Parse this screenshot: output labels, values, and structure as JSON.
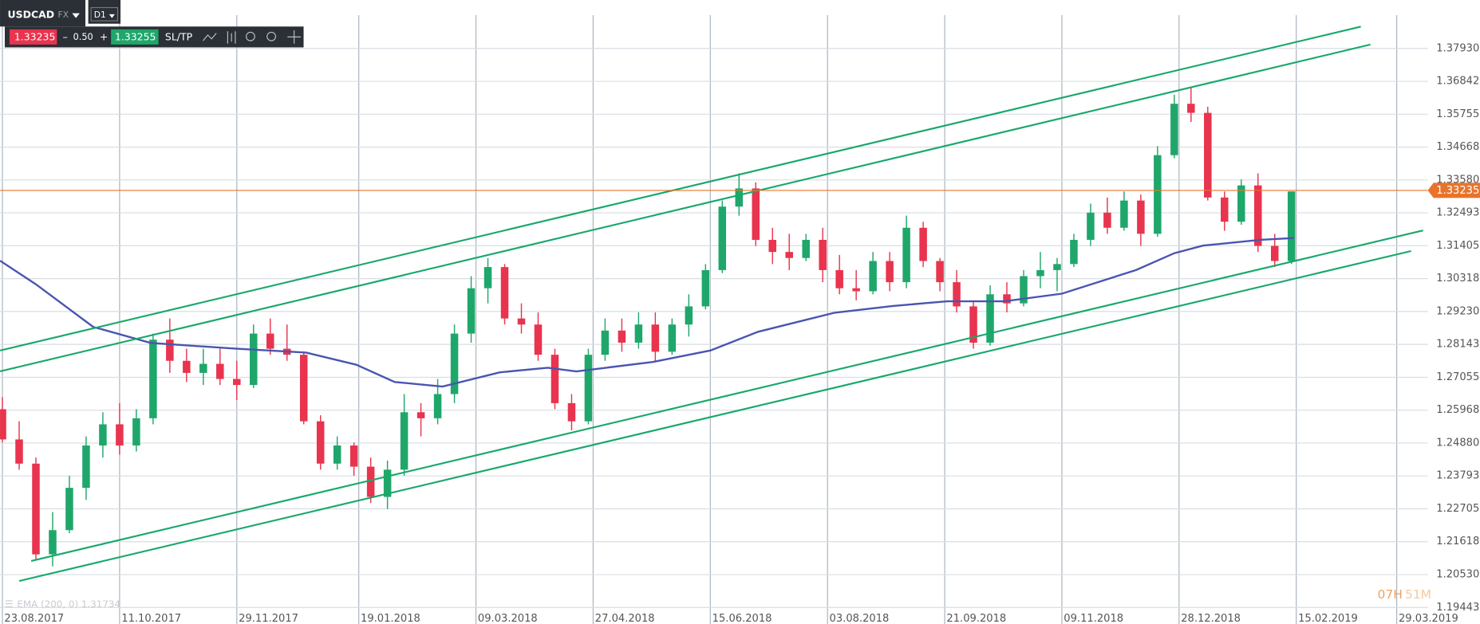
{
  "toolbar": {
    "symbol": "USDCAD",
    "market": "FX",
    "timeframe": "D1",
    "sell": "1.33235",
    "minus": "–",
    "spread": "0.50",
    "plus": "+",
    "buy": "1.33255",
    "sltp": "SL/TP"
  },
  "indicator_label": "EMA (200, 0) 1.31734",
  "timer": {
    "hours": "07H",
    "minutes": "51M"
  },
  "chart_data": {
    "type": "candlestick",
    "up_color": "#1fa76b",
    "down_color": "#e8344e",
    "xlim": [
      "22.08.2017",
      "11.04.2019"
    ],
    "xticks": [
      "23.08.2017",
      "11.10.2017",
      "29.11.2017",
      "19.01.2018",
      "09.03.2018",
      "27.04.2018",
      "15.06.2018",
      "03.08.2018",
      "21.09.2018",
      "09.11.2018",
      "28.12.2018",
      "15.02.2019",
      "29.03.2019"
    ],
    "ylim": [
      1.1932,
      1.3903
    ],
    "yticks": [
      {
        "value": 1.3793,
        "label": "1.37930"
      },
      1.36842,
      1.35755,
      1.34668,
      {
        "value": 1.3358,
        "label": "1.33580"
      },
      1.32493,
      1.31405,
      1.30318,
      {
        "value": 1.2923,
        "label": "1.29230"
      },
      1.28143,
      1.27055,
      1.25968,
      {
        "value": 1.2488,
        "label": "1.24880"
      },
      1.23793,
      1.22705,
      1.21618,
      {
        "value": 1.2053,
        "label": "1.20530"
      },
      1.19443
    ],
    "grid": true,
    "candles": {
      "x": [
        "23.08.2017",
        "30.08.2017",
        "06.09.2017",
        "13.09.2017",
        "20.09.2017",
        "27.09.2017",
        "04.10.2017",
        "11.10.2017",
        "18.10.2017",
        "25.10.2017",
        "01.11.2017",
        "08.11.2017",
        "15.11.2017",
        "22.11.2017",
        "29.11.2017",
        "06.12.2017",
        "13.12.2017",
        "20.12.2017",
        "27.12.2017",
        "03.01.2018",
        "10.01.2018",
        "17.01.2018",
        "24.01.2018",
        "31.01.2018",
        "07.02.2018",
        "14.02.2018",
        "21.02.2018",
        "28.02.2018",
        "07.03.2018",
        "14.03.2018",
        "21.03.2018",
        "28.03.2018",
        "04.04.2018",
        "11.04.2018",
        "18.04.2018",
        "25.04.2018",
        "02.05.2018",
        "09.05.2018",
        "16.05.2018",
        "23.05.2018",
        "30.05.2018",
        "06.06.2018",
        "13.06.2018",
        "20.06.2018",
        "27.06.2018",
        "04.07.2018",
        "11.07.2018",
        "18.07.2018",
        "25.07.2018",
        "01.08.2018",
        "08.08.2018",
        "15.08.2018",
        "22.08.2018",
        "29.08.2018",
        "05.09.2018",
        "12.09.2018",
        "19.09.2018",
        "26.09.2018",
        "03.10.2018",
        "10.10.2018",
        "17.10.2018",
        "24.10.2018",
        "31.10.2018",
        "07.11.2018",
        "14.11.2018",
        "21.11.2018",
        "28.11.2018",
        "05.12.2018",
        "12.12.2018",
        "19.12.2018",
        "26.12.2018",
        "02.01.2019",
        "09.01.2019",
        "16.01.2019",
        "23.01.2019",
        "30.01.2019",
        "06.02.2019",
        "13.02.2019"
      ],
      "open": [
        1.26,
        1.25,
        1.242,
        1.212,
        1.22,
        1.234,
        1.248,
        1.255,
        1.248,
        1.257,
        1.283,
        1.276,
        1.272,
        1.275,
        1.27,
        1.268,
        1.285,
        1.28,
        1.278,
        1.256,
        1.242,
        1.248,
        1.241,
        1.231,
        1.24,
        1.259,
        1.257,
        1.265,
        1.285,
        1.3,
        1.307,
        1.29,
        1.288,
        1.278,
        1.262,
        1.256,
        1.278,
        1.286,
        1.282,
        1.288,
        1.279,
        1.288,
        1.294,
        1.306,
        1.327,
        1.333,
        1.316,
        1.312,
        1.31,
        1.316,
        1.306,
        1.3,
        1.299,
        1.309,
        1.302,
        1.32,
        1.309,
        1.302,
        1.294,
        1.282,
        1.298,
        1.295,
        1.304,
        1.306,
        1.308,
        1.316,
        1.325,
        1.32,
        1.329,
        1.318,
        1.344,
        1.361,
        1.358,
        1.33,
        1.322,
        1.334,
        1.314,
        1.309
      ],
      "high": [
        1.264,
        1.256,
        1.244,
        1.226,
        1.238,
        1.251,
        1.259,
        1.262,
        1.26,
        1.285,
        1.29,
        1.28,
        1.28,
        1.28,
        1.276,
        1.288,
        1.29,
        1.288,
        1.279,
        1.258,
        1.251,
        1.249,
        1.244,
        1.243,
        1.265,
        1.262,
        1.27,
        1.288,
        1.304,
        1.31,
        1.308,
        1.295,
        1.292,
        1.28,
        1.265,
        1.28,
        1.29,
        1.29,
        1.292,
        1.292,
        1.29,
        1.298,
        1.308,
        1.329,
        1.338,
        1.335,
        1.32,
        1.318,
        1.318,
        1.32,
        1.311,
        1.306,
        1.312,
        1.312,
        1.324,
        1.322,
        1.31,
        1.306,
        1.296,
        1.301,
        1.302,
        1.306,
        1.312,
        1.31,
        1.318,
        1.328,
        1.33,
        1.332,
        1.331,
        1.347,
        1.364,
        1.3665,
        1.36,
        1.332,
        1.336,
        1.338,
        1.318,
        1.332
      ],
      "low": [
        1.249,
        1.24,
        1.21,
        1.208,
        1.219,
        1.23,
        1.244,
        1.245,
        1.246,
        1.255,
        1.272,
        1.269,
        1.268,
        1.268,
        1.263,
        1.267,
        1.278,
        1.276,
        1.255,
        1.24,
        1.24,
        1.238,
        1.229,
        1.227,
        1.238,
        1.251,
        1.255,
        1.262,
        1.282,
        1.295,
        1.288,
        1.285,
        1.276,
        1.26,
        1.253,
        1.255,
        1.276,
        1.279,
        1.28,
        1.276,
        1.278,
        1.284,
        1.293,
        1.305,
        1.324,
        1.314,
        1.308,
        1.306,
        1.309,
        1.302,
        1.298,
        1.296,
        1.298,
        1.299,
        1.3,
        1.307,
        1.299,
        1.292,
        1.28,
        1.281,
        1.292,
        1.294,
        1.3,
        1.299,
        1.307,
        1.314,
        1.318,
        1.319,
        1.314,
        1.317,
        1.343,
        1.355,
        1.329,
        1.319,
        1.321,
        1.312,
        1.307,
        1.308
      ],
      "close": [
        1.25,
        1.242,
        1.212,
        1.22,
        1.234,
        1.248,
        1.255,
        1.248,
        1.257,
        1.283,
        1.276,
        1.272,
        1.275,
        1.27,
        1.268,
        1.285,
        1.28,
        1.278,
        1.256,
        1.242,
        1.248,
        1.241,
        1.231,
        1.24,
        1.259,
        1.257,
        1.265,
        1.285,
        1.3,
        1.307,
        1.29,
        1.288,
        1.278,
        1.262,
        1.256,
        1.278,
        1.286,
        1.282,
        1.288,
        1.279,
        1.288,
        1.294,
        1.306,
        1.327,
        1.333,
        1.316,
        1.312,
        1.31,
        1.316,
        1.306,
        1.3,
        1.299,
        1.309,
        1.302,
        1.32,
        1.309,
        1.302,
        1.294,
        1.282,
        1.298,
        1.295,
        1.304,
        1.306,
        1.308,
        1.316,
        1.325,
        1.32,
        1.329,
        1.318,
        1.344,
        1.361,
        1.358,
        1.33,
        1.322,
        1.334,
        1.314,
        1.309,
        1.332
      ]
    },
    "ema": {
      "color": "#4a55b0",
      "x": [
        "22.08.2017",
        "06.09.2017",
        "30.09.2017",
        "24.10.2017",
        "29.11.2017",
        "28.12.2017",
        "18.01.2018",
        "03.02.2018",
        "23.02.2018",
        "19.03.2018",
        "08.04.2018",
        "20.04.2018",
        "22.05.2018",
        "15.06.2018",
        "05.07.2018",
        "06.08.2018",
        "30.08.2018",
        "22.09.2018",
        "16.10.2018",
        "09.11.2018",
        "10.12.2018",
        "26.12.2018",
        "07.01.2019",
        "31.01.2019",
        "14.02.2019"
      ],
      "values": [
        1.3091,
        1.3013,
        1.2872,
        1.2819,
        1.28,
        1.2787,
        1.2747,
        1.269,
        1.2675,
        1.2722,
        1.2737,
        1.2725,
        1.2756,
        1.2794,
        1.2856,
        1.2919,
        1.2941,
        1.2957,
        1.2957,
        1.2982,
        1.306,
        1.3116,
        1.3141,
        1.316,
        1.3166
      ]
    },
    "channel_color": "#18a86b",
    "channel_lines": [
      {
        "x": [
          "22.08.2017",
          "14.03.2019"
        ],
        "values": [
          1.2794,
          1.3865
        ]
      },
      {
        "x": [
          "22.08.2017",
          "18.03.2019"
        ],
        "values": [
          1.2725,
          1.3806
        ]
      },
      {
        "x": [
          "04.09.2017",
          "09.04.2019"
        ],
        "values": [
          1.2098,
          1.3191
        ]
      },
      {
        "x": [
          "30.08.2017",
          "04.04.2019"
        ],
        "values": [
          1.2032,
          1.3123
        ]
      }
    ],
    "current_price": 1.33235,
    "current_price_color": "#e8742b"
  }
}
